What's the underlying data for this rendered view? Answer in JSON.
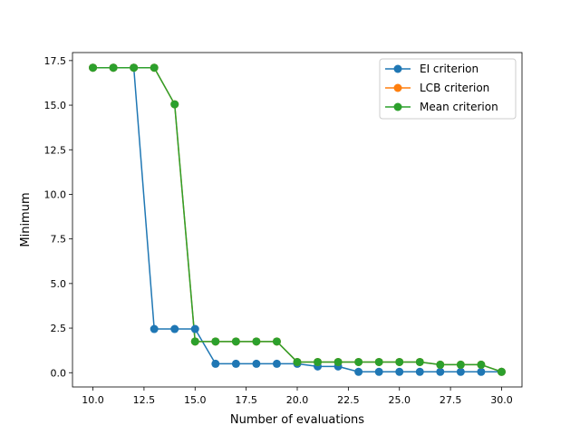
{
  "chart_data": {
    "type": "line",
    "title": "",
    "xlabel": "Number of evaluations",
    "ylabel": "Minimum",
    "xlim": [
      9.0,
      31.0
    ],
    "ylim": [
      -0.8,
      17.95
    ],
    "xticks": [
      10.0,
      12.5,
      15.0,
      17.5,
      20.0,
      22.5,
      25.0,
      27.5,
      30.0
    ],
    "xtick_labels": [
      "10.0",
      "12.5",
      "15.0",
      "17.5",
      "20.0",
      "22.5",
      "25.0",
      "27.5",
      "30.0"
    ],
    "yticks": [
      0.0,
      2.5,
      5.0,
      7.5,
      10.0,
      12.5,
      15.0,
      17.5
    ],
    "ytick_labels": [
      "0.0",
      "2.5",
      "5.0",
      "7.5",
      "10.0",
      "12.5",
      "15.0",
      "17.5"
    ],
    "grid": false,
    "legend_position": "top-right",
    "x": [
      10,
      11,
      12,
      13,
      14,
      15,
      16,
      17,
      18,
      19,
      20,
      21,
      22,
      23,
      24,
      25,
      26,
      27,
      28,
      29,
      30
    ],
    "series": [
      {
        "name": "EI criterion",
        "color": "#1f77b4",
        "values": [
          17.1,
          17.1,
          17.1,
          2.45,
          2.45,
          2.45,
          0.5,
          0.5,
          0.5,
          0.5,
          0.5,
          0.35,
          0.35,
          0.05,
          0.05,
          0.05,
          0.05,
          0.05,
          0.05,
          0.05,
          0.05
        ]
      },
      {
        "name": "LCB criterion",
        "color": "#ff7f0e",
        "values": [
          17.1,
          17.1,
          17.1,
          17.1,
          15.05,
          1.75,
          1.75,
          1.75,
          1.75,
          1.75,
          0.6,
          0.6,
          0.6,
          0.6,
          0.6,
          0.6,
          0.6,
          0.45,
          0.45,
          0.45,
          0.05
        ]
      },
      {
        "name": "Mean criterion",
        "color": "#2ca02c",
        "values": [
          17.1,
          17.1,
          17.1,
          17.1,
          15.05,
          1.75,
          1.75,
          1.75,
          1.75,
          1.75,
          0.6,
          0.6,
          0.6,
          0.6,
          0.6,
          0.6,
          0.6,
          0.45,
          0.45,
          0.45,
          0.05
        ]
      }
    ]
  }
}
